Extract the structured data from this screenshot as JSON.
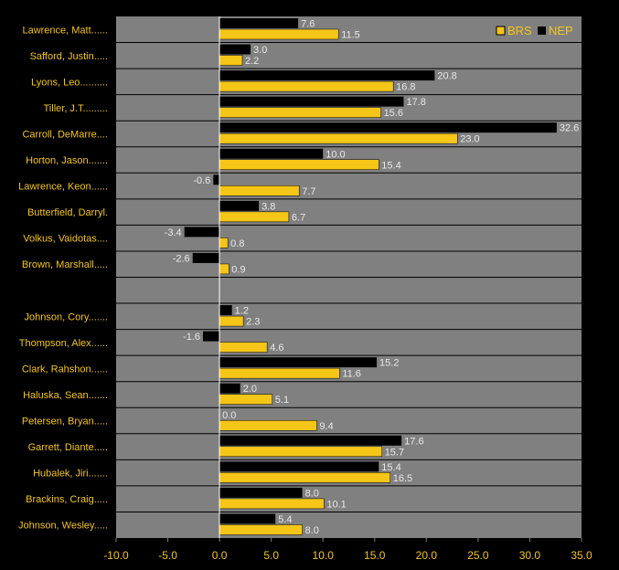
{
  "chart_data": {
    "type": "bar",
    "orientation": "horizontal",
    "categories": [
      "Lawrence, Matt......",
      "Safford, Justin.....",
      "Lyons, Leo..........",
      "Tiller, J.T.........",
      "Carroll, DeMarre....",
      "Horton, Jason.......",
      "Lawrence, Keon......",
      "Butterfield, Darryl.",
      "Volkus, Vaidotas....",
      "Brown, Marshall.....",
      "",
      "Johnson, Cory.......",
      "Thompson, Alex......",
      "Clark, Rahshon......",
      "Haluska, Sean.......",
      "Petersen, Bryan.....",
      "Garrett, Diante.....",
      "Hubalek, Jiri.......",
      "Brackins, Craig.....",
      "Johnson, Wesley....."
    ],
    "series": [
      {
        "name": "NEP",
        "color": "#000000",
        "values": [
          7.6,
          3.0,
          20.8,
          17.8,
          32.6,
          10.0,
          -0.6,
          3.8,
          -3.4,
          -2.6,
          null,
          1.2,
          -1.6,
          15.2,
          2.0,
          0.0,
          17.6,
          15.4,
          8.0,
          5.4
        ],
        "labels": [
          "7.6",
          "3.0",
          "20.8",
          "17.8",
          "32.6",
          "10.0",
          "-0.6",
          "3.8",
          "-3.4",
          "-2.6",
          "",
          "1.2",
          "-1.6",
          "15.2",
          "2.0",
          "0.0",
          "17.6",
          "15.4",
          "8.0",
          "5.4"
        ]
      },
      {
        "name": "BRS",
        "color": "#f5c518",
        "values": [
          11.5,
          2.2,
          16.8,
          15.6,
          23.0,
          15.4,
          7.7,
          6.7,
          0.8,
          0.9,
          null,
          2.3,
          4.6,
          11.6,
          5.1,
          9.4,
          15.7,
          16.5,
          10.1,
          8.0
        ],
        "labels": [
          "11.5",
          "2.2",
          "16.8",
          "15.6",
          "23.0",
          "15.4",
          "7.7",
          "6.7",
          "0.8",
          "0.9",
          "",
          "2.3",
          "4.6",
          "11.6",
          "5.1",
          "9.4",
          "15.7",
          "16.5",
          "10.1",
          "8.0"
        ]
      }
    ],
    "legend": {
      "position": "top-right",
      "order": [
        "BRS",
        "NEP"
      ]
    },
    "xlim": [
      -10,
      35
    ],
    "xticks": [
      -10,
      -5,
      0,
      5,
      10,
      15,
      20,
      25,
      30,
      35
    ],
    "xtick_labels": [
      "-10.0",
      "-5.0",
      "0.0",
      "5.0",
      "10.0",
      "15.0",
      "20.0",
      "25.0",
      "30.0",
      "35.0"
    ],
    "grid": true,
    "colors": {
      "background": "#000000",
      "plot_area": "#808080",
      "label_text": "#f5c518",
      "value_text": "#e8e8e8"
    }
  }
}
